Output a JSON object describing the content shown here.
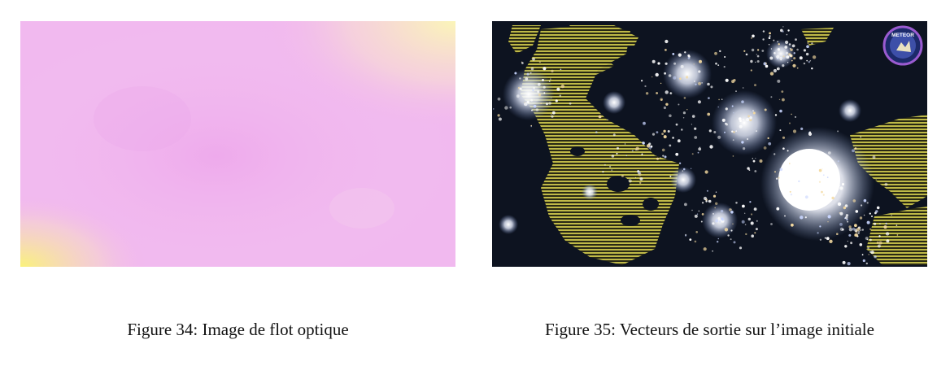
{
  "figures": [
    {
      "caption": "Figure 34: Image de flot optique",
      "image": "optical-flow-visualization",
      "colors": {
        "base": "#f1b6ef",
        "warm_corner": "#fbf3b4",
        "yellow_corner": "#faf27a"
      }
    },
    {
      "caption": "Figure 35: Vecteurs de sortie sur l’image initiale",
      "image": "night-city-satellite-with-flow-vectors",
      "logo_text": "METEOR",
      "colors": {
        "background": "#0d1320",
        "lights": "#ffffff",
        "vectors": "#c8c24a"
      }
    }
  ]
}
